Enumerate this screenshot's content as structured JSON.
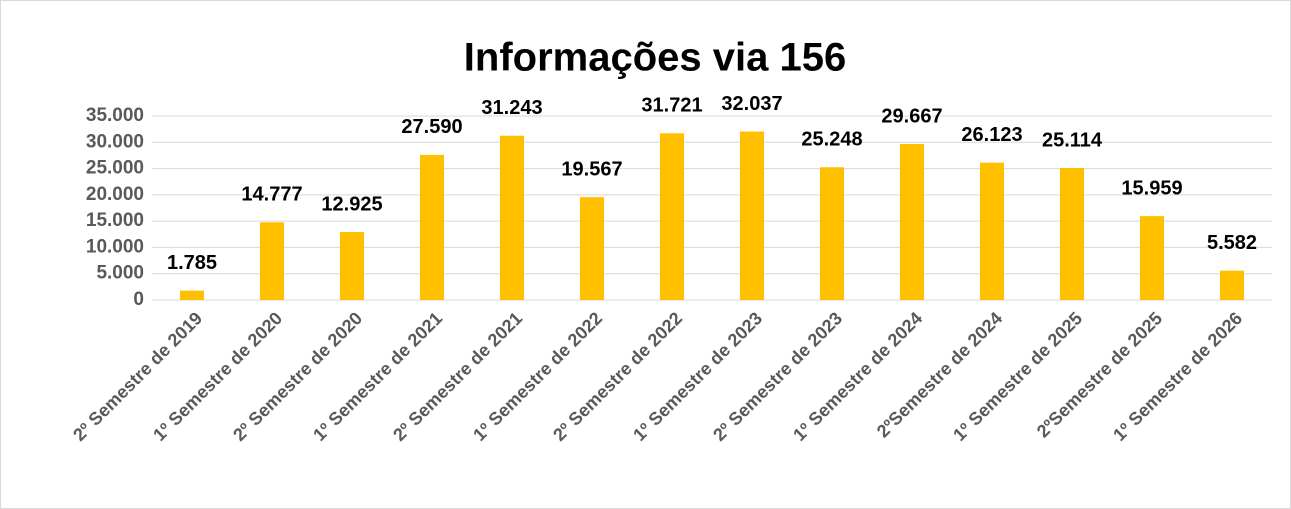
{
  "chart_data": {
    "type": "bar",
    "title": "Informações via 156",
    "categories": [
      "2º Semestre de 2019",
      "1º Semestre de 2020",
      "2º Semestre de 2020",
      "1º Semestre de 2021",
      "2º Semestre de 2021",
      "1º Semestre de 2022",
      "2º Semestre de 2022",
      "1º Semestre de 2023",
      "2º Semestre de 2023",
      "1º Semestre de 2024",
      "2ºSemestre de 2024",
      "1º Semestre de 2025",
      "2ºSemestre de 2025",
      "1º Semestre de 2026"
    ],
    "values": [
      1785,
      14777,
      12925,
      27590,
      31243,
      19567,
      31721,
      32037,
      25248,
      29667,
      26123,
      25114,
      15959,
      5582
    ],
    "value_labels": [
      "1.785",
      "14.777",
      "12.925",
      "27.590",
      "31.243",
      "19.567",
      "31.721",
      "32.037",
      "25.248",
      "29.667",
      "26.123",
      "25.114",
      "15.959",
      "5.582"
    ],
    "color": "#ffc000",
    "ylim": [
      0,
      35000
    ],
    "yticks": [
      0,
      {
        "value": 5000,
        "label": "5.000"
      },
      {
        "value": 10000,
        "label": "10.000"
      },
      {
        "value": 15000,
        "label": "15.000"
      },
      {
        "value": 20000,
        "label": "20.000"
      },
      {
        "value": 25000,
        "label": "25.000"
      },
      {
        "value": 30000,
        "label": "30.000"
      },
      {
        "value": 35000,
        "label": "35.000"
      }
    ],
    "grid": true
  }
}
